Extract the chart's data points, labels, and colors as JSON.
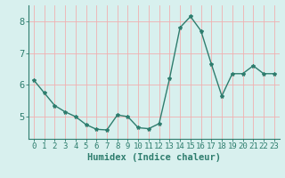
{
  "x": [
    0,
    1,
    2,
    3,
    4,
    5,
    6,
    7,
    8,
    9,
    10,
    11,
    12,
    13,
    14,
    15,
    16,
    17,
    18,
    19,
    20,
    21,
    22,
    23
  ],
  "y": [
    6.15,
    5.75,
    5.35,
    5.15,
    5.0,
    4.75,
    4.6,
    4.58,
    5.05,
    5.0,
    4.65,
    4.62,
    4.78,
    6.2,
    7.8,
    8.15,
    7.7,
    6.65,
    5.65,
    6.35,
    6.35,
    6.6,
    6.35,
    6.35
  ],
  "line_color": "#2e7d6e",
  "marker": "*",
  "marker_size": 3,
  "background_color": "#d8f0ee",
  "grid_color": "#f0b0b0",
  "axis_color": "#2e7d6e",
  "xlabel": "Humidex (Indice chaleur)",
  "xlabel_fontsize": 7.5,
  "yticks": [
    5,
    6,
    7,
    8
  ],
  "xtick_labels": [
    "0",
    "1",
    "2",
    "3",
    "4",
    "5",
    "6",
    "7",
    "8",
    "9",
    "10",
    "11",
    "12",
    "13",
    "14",
    "15",
    "16",
    "17",
    "18",
    "19",
    "20",
    "21",
    "22",
    "23"
  ],
  "ylim": [
    4.3,
    8.5
  ],
  "xlim": [
    -0.5,
    23.5
  ],
  "tick_fontsize": 6.5,
  "line_width": 1.0
}
